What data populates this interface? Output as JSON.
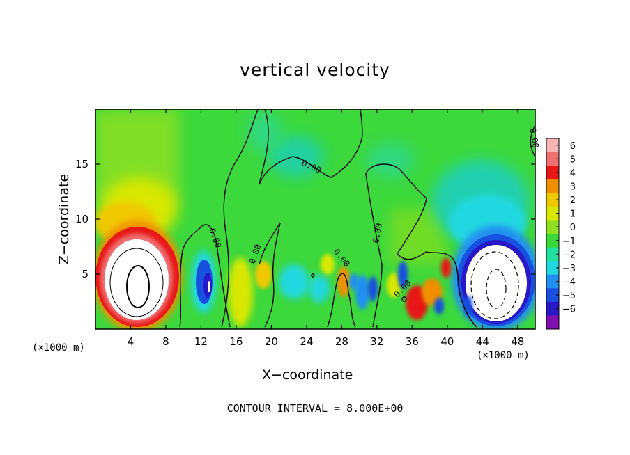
{
  "chart_data": {
    "type": "heatmap",
    "title": "vertical velocity",
    "xlabel": "X−coordinate",
    "ylabel": "Z−coordinate",
    "x_unit_left": "(×1000 m)",
    "x_unit_right": "(×1000 m)",
    "xlim": [
      0,
      50
    ],
    "ylim": [
      0,
      20
    ],
    "x_ticks": [
      4,
      8,
      12,
      16,
      20,
      24,
      28,
      32,
      36,
      40,
      44,
      48
    ],
    "y_ticks": [
      5,
      10,
      15
    ],
    "colorbar": {
      "ticks": [
        "6",
        "5",
        "4",
        "3",
        "2",
        "1",
        "0",
        "−1",
        "−2",
        "−3",
        "−4",
        "−5",
        "−6"
      ],
      "colors": [
        "#f6b4b4",
        "#f07070",
        "#e81818",
        "#f09000",
        "#f0c800",
        "#d8e800",
        "#90e020",
        "#38d838",
        "#20e0a0",
        "#20d8e0",
        "#2090f0",
        "#1850e0",
        "#2818c8",
        "#8010b0"
      ]
    },
    "features": [
      {
        "kind": "updraft_core",
        "x": 5,
        "z": 4,
        "peak": "> 6"
      },
      {
        "kind": "downdraft_core",
        "x": 45.5,
        "z": 3.5,
        "peak": "< -6"
      },
      {
        "kind": "downdraft",
        "x": 12.5,
        "z": 4,
        "peak": -5
      }
    ],
    "contour_labels": [
      "0.00",
      "0.00",
      "0.00",
      "0.00",
      "0.00",
      "0.00",
      "0.00"
    ],
    "footer": "CONTOUR INTERVAL = 8.000E+00"
  }
}
